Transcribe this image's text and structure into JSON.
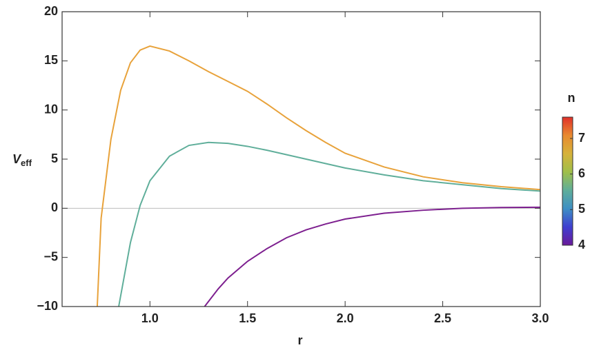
{
  "chart_data": {
    "type": "line",
    "xlabel": "r",
    "ylabel": "V",
    "ylabel_subscript": "eff",
    "xlim": [
      0.55,
      3.0
    ],
    "ylim": [
      -10,
      20
    ],
    "xticks": [
      {
        "value": 1.0,
        "label": "1.0"
      },
      1.5,
      {
        "value": 2.0,
        "label": "2.0"
      },
      2.5,
      {
        "value": 3.0,
        "label": "3.0"
      }
    ],
    "yticks": [
      {
        "value": -10,
        "label": "−10"
      },
      {
        "value": -5,
        "label": "−5"
      },
      0,
      5,
      10,
      15,
      20
    ],
    "zero_line": true,
    "series": [
      {
        "color": "#e8a23a",
        "x": [
          0.73,
          0.75,
          0.8,
          0.85,
          0.9,
          0.95,
          1.0,
          1.1,
          1.2,
          1.3,
          1.4,
          1.5,
          1.6,
          1.7,
          1.8,
          1.9,
          2.0,
          2.2,
          2.4,
          2.6,
          2.8,
          3.0
        ],
        "values": [
          -10,
          -1,
          7,
          12,
          14.8,
          16.1,
          16.5,
          16.0,
          15.0,
          13.9,
          12.9,
          11.9,
          10.6,
          9.2,
          7.9,
          6.7,
          5.6,
          4.2,
          3.2,
          2.6,
          2.2,
          1.9
        ]
      },
      {
        "color": "#5fae9a",
        "x": [
          0.84,
          0.9,
          0.95,
          1.0,
          1.1,
          1.2,
          1.3,
          1.4,
          1.5,
          1.6,
          1.8,
          2.0,
          2.2,
          2.4,
          2.6,
          2.8,
          3.0
        ],
        "values": [
          -10,
          -3.5,
          0.3,
          2.8,
          5.3,
          6.4,
          6.7,
          6.6,
          6.3,
          5.9,
          5.0,
          4.1,
          3.4,
          2.8,
          2.4,
          2.0,
          1.75
        ]
      },
      {
        "color": "#7d1f8f",
        "x": [
          1.28,
          1.35,
          1.4,
          1.5,
          1.6,
          1.7,
          1.8,
          1.9,
          2.0,
          2.2,
          2.4,
          2.6,
          2.8,
          3.0
        ],
        "values": [
          -10,
          -8.2,
          -7.1,
          -5.4,
          -4.1,
          -3.0,
          -2.2,
          -1.6,
          -1.1,
          -0.5,
          -0.2,
          0,
          0.08,
          0.1
        ]
      }
    ],
    "colorbar": {
      "label": "n",
      "lim": [
        4,
        7.6
      ],
      "ticks": [
        4,
        5,
        6,
        7
      ],
      "colors": [
        "#6a1b9a",
        "#3f3fd0",
        "#3e8fc4",
        "#5fae9a",
        "#9fbf4a",
        "#d6b23a",
        "#e88a30",
        "#e0302a"
      ]
    }
  }
}
